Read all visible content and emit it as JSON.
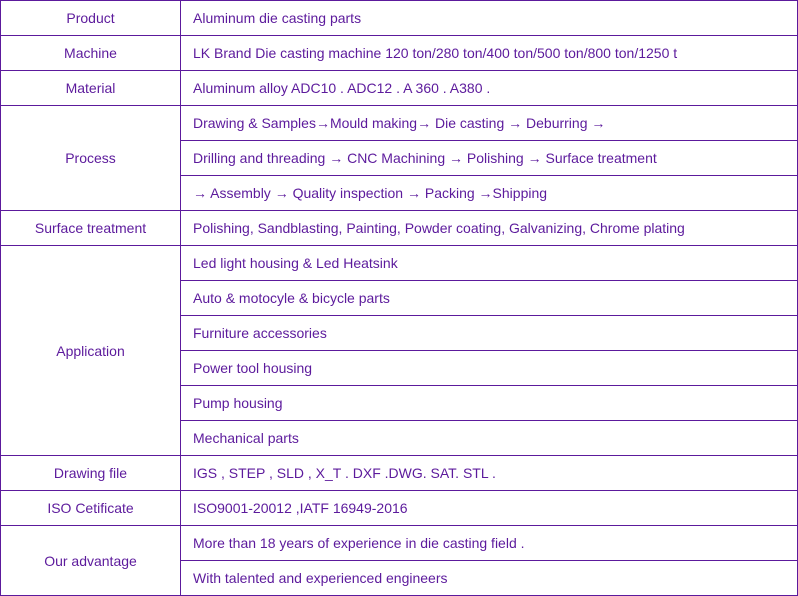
{
  "colors": {
    "text": "#5c1a9c",
    "border": "#5c1a9c",
    "background": "#ffffff"
  },
  "table": {
    "product": {
      "label": "Product",
      "value": " Aluminum die casting parts"
    },
    "machine": {
      "label": "Machine",
      "value": "LK Brand Die casting machine 120 ton/280 ton/400 ton/500 ton/800 ton/1250 t"
    },
    "material": {
      "label": "Material",
      "value": " Aluminum alloy ADC10 . ADC12 . A 360 . A380   ."
    },
    "process": {
      "label": "Process",
      "row1": "Drawing & Samples→Mould making→ Die casting  →   Deburring   →",
      "row2": "Drilling and threading →   CNC Machining   → Polishing   →   Surface treatment",
      "row3": "→   Assembly   →   Quality inspection   →   Packing →Shipping"
    },
    "surface": {
      "label": "Surface treatment",
      "value": "Polishing, Sandblasting, Painting, Powder coating, Galvanizing, Chrome plating"
    },
    "application": {
      "label": "Application",
      "row1": " Led light housing & Led Heatsink",
      "row2": "  Auto & motocyle & bicycle   parts",
      "row3": "  Furniture accessories",
      "row4": " Power tool housing",
      "row5": "  Pump housing",
      "row6": "    Mechanical parts"
    },
    "drawingfile": {
      "label": "Drawing file",
      "value": "  IGS , STEP , SLD ,   X_T .   DXF .DWG. SAT. STL ."
    },
    "iso": {
      "label": "ISO Cetificate",
      "value": "  ISO9001-20012 ,IATF 16949-2016"
    },
    "advantage": {
      "label": "Our advantage",
      "row1": "  More than 18 years of experience in die casting field .",
      "row2": "  With talented and experienced engineers"
    }
  }
}
